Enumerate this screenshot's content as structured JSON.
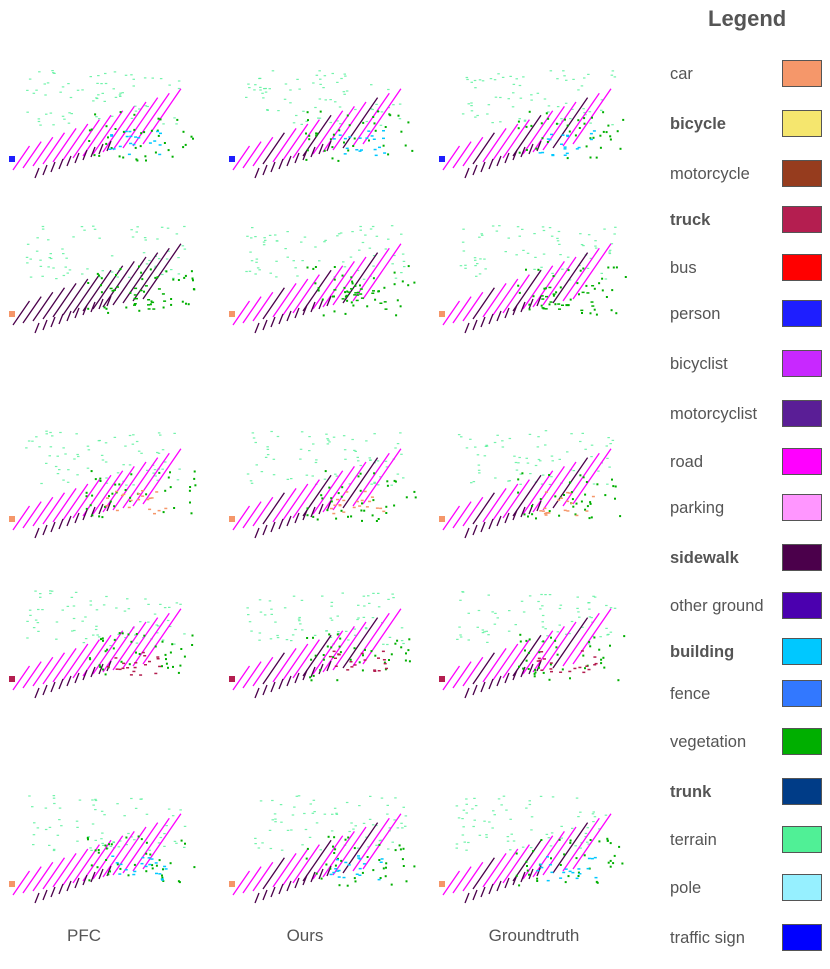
{
  "legend": {
    "title": "Legend",
    "items": [
      {
        "label": "car",
        "color": "#F5976A",
        "bold": false
      },
      {
        "label": "bicycle",
        "color": "#F5E66E",
        "bold": true
      },
      {
        "label": "motorcycle",
        "color": "#963C1E",
        "bold": false
      },
      {
        "label": "truck",
        "color": "#B41E50",
        "bold": true
      },
      {
        "label": "bus",
        "color": "#FF0000",
        "bold": false
      },
      {
        "label": "person",
        "color": "#1E1EFF",
        "bold": false
      },
      {
        "label": "bicyclist",
        "color": "#C828FF",
        "bold": false
      },
      {
        "label": "motorcyclist",
        "color": "#5A1E96",
        "bold": false
      },
      {
        "label": "road",
        "color": "#FF00FF",
        "bold": false
      },
      {
        "label": "parking",
        "color": "#FF96FF",
        "bold": false
      },
      {
        "label": "sidewalk",
        "color": "#4B004B",
        "bold": true
      },
      {
        "label": "other ground",
        "color": "#4B00AF",
        "bold": false
      },
      {
        "label": "building",
        "color": "#00C8FF",
        "bold": true
      },
      {
        "label": "fence",
        "color": "#3278FF",
        "bold": false
      },
      {
        "label": "vegetation",
        "color": "#00AF00",
        "bold": false
      },
      {
        "label": "trunk",
        "color": "#003C87",
        "bold": true
      },
      {
        "label": "terrain",
        "color": "#50F096",
        "bold": false
      },
      {
        "label": "pole",
        "color": "#96F0FF",
        "bold": false
      },
      {
        "label": "traffic sign",
        "color": "#0000FF",
        "bold": false
      }
    ]
  },
  "columns": [
    "PFC",
    "Ours",
    "Groundtruth"
  ],
  "scenes": [
    {
      "row": 1,
      "pfc_ground": "road",
      "ours_ground": "road",
      "gt_ground": "road",
      "feature": "building"
    },
    {
      "row": 2,
      "pfc_ground": "sidewalk",
      "ours_ground": "road",
      "gt_ground": "road",
      "feature": "vegetation"
    },
    {
      "row": 3,
      "pfc_ground": "road",
      "ours_ground": "road",
      "gt_ground": "road",
      "feature": "car"
    },
    {
      "row": 4,
      "pfc_ground": "road",
      "ours_ground": "road",
      "gt_ground": "road",
      "feature": "truck"
    },
    {
      "row": 5,
      "pfc_ground": "road",
      "ours_ground": "road",
      "gt_ground": "road",
      "feature": "building"
    }
  ]
}
